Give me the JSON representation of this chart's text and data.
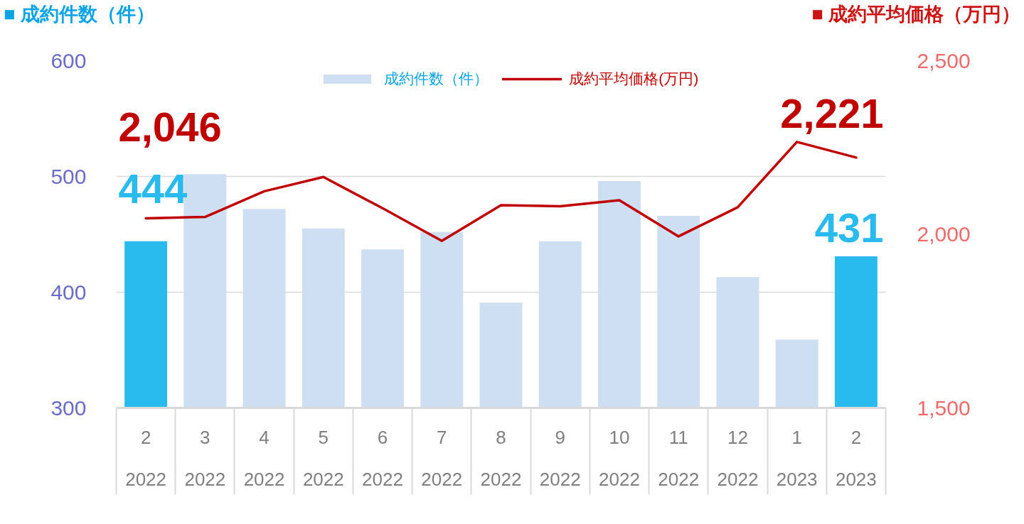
{
  "chart_data": {
    "type": "bar",
    "ylabel": "■ 成約件数（件）",
    "y2label": "■ 成約平均価格（万円）",
    "categories": [
      "2\n2022",
      "3\n2022",
      "4\n2022",
      "5\n2022",
      "6\n2022",
      "7\n2022",
      "8\n2022",
      "9\n2022",
      "10\n2022",
      "11\n2022",
      "12\n2022",
      "1\n2023",
      "2\n2023"
    ],
    "series": [
      {
        "name": "成約件数（件）",
        "color": "#cfdff2",
        "colors": [
          "#29bbee",
          "#cfdff2",
          "#cfdff2",
          "#cfdff2",
          "#cfdff2",
          "#cfdff2",
          "#cfdff2",
          "#cfdff2",
          "#cfdff2",
          "#cfdff2",
          "#cfdff2",
          "#cfdff2",
          "#29bbee"
        ],
        "values": [
          444,
          502,
          472,
          455,
          437,
          452,
          391,
          444,
          496,
          466,
          413,
          359,
          431
        ],
        "value_labels": [
          "444",
          null,
          null,
          null,
          null,
          null,
          null,
          null,
          null,
          null,
          null,
          null,
          "431"
        ]
      },
      {
        "name": "成約平均価格(万円)",
        "type": "line",
        "axis": "y2",
        "color": "#c00000",
        "values": [
          2046,
          2050,
          2124,
          2165,
          2075,
          1981,
          2084,
          2081,
          2098,
          1994,
          2078,
          2266,
          2221
        ],
        "value_labels": [
          "2,046",
          null,
          null,
          null,
          null,
          null,
          null,
          null,
          null,
          null,
          null,
          null,
          "2,221"
        ]
      }
    ],
    "ylim": [
      300,
      600
    ],
    "yticks": [
      300,
      400,
      500,
      600
    ],
    "y2lim": [
      1500,
      2500
    ],
    "y2ticks": [
      {
        "value": 1500,
        "label": "1,500"
      },
      {
        "value": 2000,
        "label": "2,000"
      },
      {
        "value": 2500,
        "label": "2,500"
      }
    ],
    "grid": "y",
    "legend": "top"
  }
}
